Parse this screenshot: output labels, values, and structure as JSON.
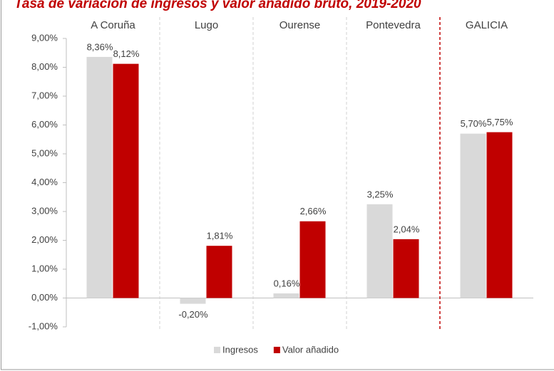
{
  "chart_data": {
    "type": "bar",
    "title": "Tasa de variación de ingresos y valor añadido bruto, 2019-2020",
    "categories": [
      "A Coruña",
      "Lugo",
      "Ourense",
      "Pontevedra",
      "GALICIA"
    ],
    "series": [
      {
        "name": "Ingresos",
        "color": "#d9d9d9",
        "values": [
          8.36,
          -0.2,
          0.16,
          3.25,
          5.7
        ],
        "value_labels": [
          "8,36%",
          "-0,20%",
          "0,16%",
          "3,25%",
          "5,70%"
        ]
      },
      {
        "name": "Valor añadido",
        "color": "#c00000",
        "values": [
          8.12,
          1.81,
          2.66,
          2.04,
          5.75
        ],
        "value_labels": [
          "8,12%",
          "1,81%",
          "2,66%",
          "2,04%",
          "5,75%"
        ]
      }
    ],
    "ylim": [
      -1,
      9
    ],
    "yticks": [
      {
        "value": -1,
        "label": "-1,00%"
      },
      {
        "value": 0,
        "label": "0,00%"
      },
      {
        "value": 1,
        "label": "1,00%"
      },
      {
        "value": 2,
        "label": "2,00%"
      },
      {
        "value": 3,
        "label": "3,00%"
      },
      {
        "value": 4,
        "label": "4,00%"
      },
      {
        "value": 5,
        "label": "5,00%"
      },
      {
        "value": 6,
        "label": "6,00%"
      },
      {
        "value": 7,
        "label": "7,00%"
      },
      {
        "value": 8,
        "label": "8,00%"
      },
      {
        "value": 9,
        "label": "9,00%"
      }
    ],
    "legend": "bottom"
  }
}
